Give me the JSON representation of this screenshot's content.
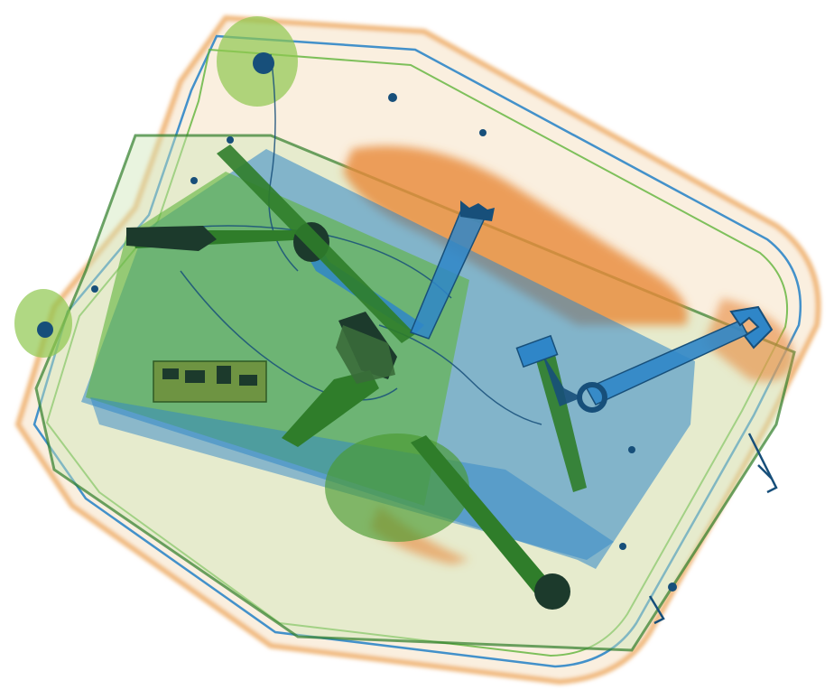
{
  "image": {
    "kind": "x-ray baggage scan",
    "background": "#ffffff"
  },
  "palette": {
    "organic": "#e8893a",
    "organic_light": "#f3c89a",
    "mixed": "#5fb43a",
    "mixed_dark": "#2f7d2a",
    "metal": "#2f86c8",
    "metal_dark": "#174f7a",
    "dense": "#1c3a2c"
  },
  "objects": [
    {
      "name": "suitcase",
      "material": "mixed"
    },
    {
      "name": "pliers",
      "material": "metal"
    },
    {
      "name": "handgun",
      "material": "metal"
    },
    {
      "name": "open-end-wrench",
      "material": "metal"
    },
    {
      "name": "ratchet-wrench",
      "material": "metal"
    },
    {
      "name": "spanner",
      "material": "metal"
    },
    {
      "name": "clamp-tool",
      "material": "metal"
    },
    {
      "name": "circuit-board",
      "material": "mixed"
    },
    {
      "name": "cables",
      "material": "metal"
    },
    {
      "name": "clothing",
      "material": "organic"
    }
  ]
}
